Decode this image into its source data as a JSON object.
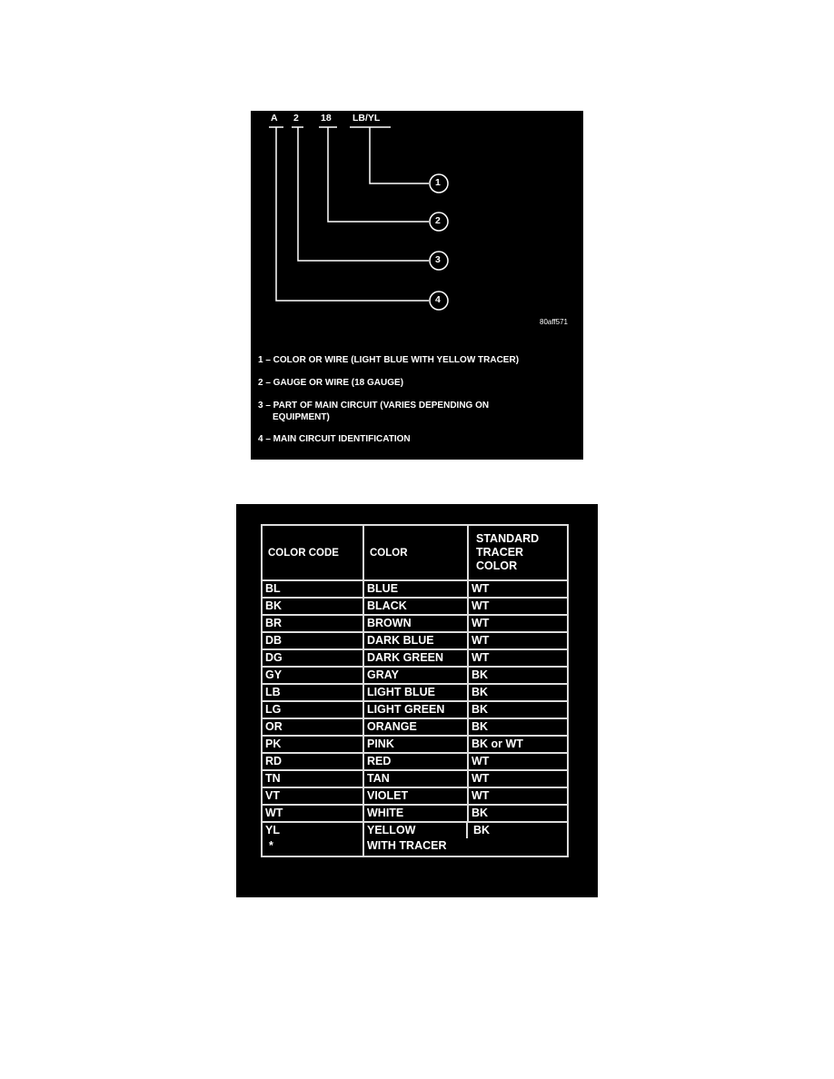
{
  "diagram": {
    "code_parts": [
      "A",
      "2",
      "18",
      "LB/YL"
    ],
    "callouts": [
      "1",
      "2",
      "3",
      "4"
    ],
    "figure_id": "80aff571",
    "legend": [
      "1 – COLOR OR WIRE (LIGHT BLUE WITH YELLOW TRACER)",
      "2 – GAUGE OR WIRE (18 GAUGE)",
      "3 – PART OF MAIN CIRCUIT (VARIES DEPENDING ON",
      "EQUIPMENT)",
      "4 – MAIN CIRCUIT IDENTIFICATION"
    ]
  },
  "table": {
    "headers": [
      "COLOR CODE",
      "COLOR",
      "STANDARD TRACER COLOR"
    ],
    "rows": [
      [
        "BL",
        "BLUE",
        "WT"
      ],
      [
        "BK",
        "BLACK",
        "WT"
      ],
      [
        "BR",
        "BROWN",
        "WT"
      ],
      [
        "DB",
        "DARK BLUE",
        "WT"
      ],
      [
        "DG",
        "DARK GREEN",
        "WT"
      ],
      [
        "GY",
        "GRAY",
        "BK"
      ],
      [
        "LB",
        "LIGHT BLUE",
        "BK"
      ],
      [
        "LG",
        "LIGHT GREEN",
        "BK"
      ],
      [
        "OR",
        "ORANGE",
        "BK"
      ],
      [
        "PK",
        "PINK",
        "BK or WT"
      ],
      [
        "RD",
        "RED",
        "WT"
      ],
      [
        "TN",
        "TAN",
        "WT"
      ],
      [
        "VT",
        "VIOLET",
        "WT"
      ],
      [
        "WT",
        "WHITE",
        "BK"
      ],
      [
        "YL",
        "YELLOW",
        "BK"
      ]
    ],
    "footnote_mark": "*",
    "footnote_text": "WITH TRACER"
  }
}
